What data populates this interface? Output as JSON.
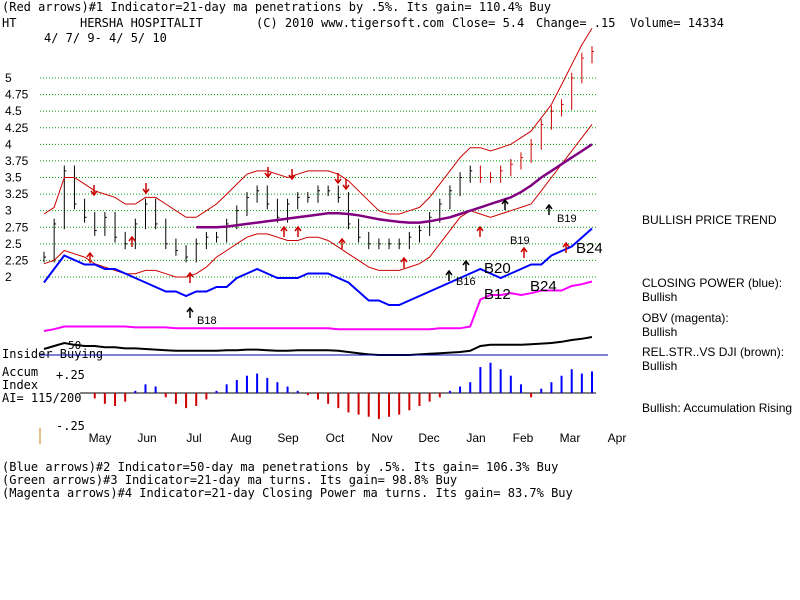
{
  "header": {
    "line1": "(Red arrows)#1 Indicator=21-day ma penetrations by .5%. Its gain= 110.4% Buy",
    "ticker": "HT",
    "company": "HERSHA HOSPITALIT",
    "copyright": "(C) 2010 www.tigersoft.com",
    "close": "Close=  5.4",
    "change": "Change= .15",
    "volume": "Volume= 14334",
    "dates": "4/ 7/ 9- 4/ 5/ 10"
  },
  "footer": {
    "line1": "(Blue arrows)#2 Indicator=50-day ma penetrations by .5%. Its gain= 106.3% Buy",
    "line2": "(Green arrows)#3 Indicator=21-day ma turns. Its gain= 98.8% Buy",
    "line3": "(Magenta arrows)#4 Indicator=21-day Closing Power ma turns. Its gain= 83.7% Buy"
  },
  "left_labels": {
    "insider": "Insider Buying",
    "accum1": "Accum",
    "accum2": "Index",
    "ai": "AI= 115/200",
    "plus25": "+.25",
    "minus25": "-.25",
    "fifty": "50"
  },
  "right_panel": {
    "trend": "BULLISH PRICE TREND",
    "cp_title": "CLOSING POWER (blue):",
    "cp_value": "Bullish",
    "obv_title": "OBV (magenta):",
    "obv_value": "Bullish",
    "rs_title": "REL.STR..VS DJI (brown):",
    "rs_value": "Bullish",
    "accum": "Bullish: Accumulation Rising"
  },
  "signal_labels": {
    "b18": "B18",
    "b19a": "B19",
    "b19b": "B19",
    "b16": "B16",
    "b20": "B20",
    "b12": "B12",
    "b24a": "B24",
    "b24b": "B24"
  },
  "colors": {
    "price": "#000000",
    "bands": "#cc0000",
    "ma50": "#800080",
    "closing_power": "#0000ff",
    "obv": "#ff00ff",
    "rel_str": "#000000",
    "accum_pos": "#0000ff",
    "accum_neg": "#cc0000",
    "grid": "#009900"
  },
  "chart_data": {
    "type": "line",
    "x_ticks": [
      "May",
      "Jun",
      "Jul",
      "Aug",
      "Sep",
      "Oct",
      "Nov",
      "Dec",
      "Jan",
      "Feb",
      "Mar",
      "Apr"
    ],
    "y_ticks": [
      2,
      2.25,
      2.5,
      2.75,
      3,
      3.25,
      3.5,
      3.75,
      4,
      4.25,
      4.5,
      4.75,
      5
    ],
    "ylim": [
      1.95,
      5.75
    ],
    "grid": true,
    "series": [
      {
        "key": "close",
        "values": [
          2.3,
          2.8,
          3.6,
          3.1,
          2.9,
          2.7,
          2.9,
          2.6,
          2.5,
          2.8,
          3.1,
          2.8,
          2.5,
          2.4,
          2.3,
          2.5,
          2.6,
          2.6,
          2.8,
          3.0,
          3.2,
          3.3,
          3.1,
          2.9,
          3.1,
          3.2,
          3.2,
          3.3,
          3.3,
          3.2,
          2.8,
          2.6,
          2.5,
          2.5,
          2.5,
          2.5,
          2.6,
          2.7,
          2.9,
          3.1,
          3.3,
          3.5,
          3.6,
          3.5,
          3.5,
          3.6,
          3.7,
          3.8,
          4.0,
          4.3,
          4.5,
          4.6,
          5.0,
          5.3,
          5.4
        ]
      },
      {
        "key": "upper_band",
        "values": [
          2.95,
          3.05,
          3.5,
          3.5,
          3.4,
          3.3,
          3.25,
          3.2,
          3.1,
          3.1,
          3.2,
          3.2,
          3.1,
          3.0,
          2.9,
          2.9,
          3.0,
          3.1,
          3.25,
          3.4,
          3.55,
          3.6,
          3.6,
          3.55,
          3.5,
          3.55,
          3.6,
          3.6,
          3.6,
          3.55,
          3.45,
          3.3,
          3.15,
          3.0,
          2.95,
          2.95,
          3.0,
          3.05,
          3.2,
          3.4,
          3.6,
          3.8,
          3.95,
          3.95,
          3.9,
          3.95,
          4.0,
          4.1,
          4.2,
          4.4,
          4.6,
          4.9,
          5.2,
          5.5,
          5.75
        ]
      },
      {
        "key": "lower_band",
        "values": [
          2.2,
          2.25,
          2.4,
          2.35,
          2.3,
          2.2,
          2.15,
          2.1,
          2.05,
          2.05,
          2.1,
          2.1,
          2.05,
          2.0,
          2.0,
          2.05,
          2.15,
          2.3,
          2.4,
          2.5,
          2.6,
          2.65,
          2.65,
          2.6,
          2.55,
          2.55,
          2.6,
          2.6,
          2.55,
          2.45,
          2.35,
          2.25,
          2.15,
          2.1,
          2.1,
          2.1,
          2.15,
          2.2,
          2.3,
          2.5,
          2.7,
          2.9,
          3.0,
          2.95,
          2.9,
          2.95,
          3.0,
          3.05,
          3.1,
          3.3,
          3.5,
          3.7,
          3.9,
          4.1,
          4.3
        ]
      },
      {
        "key": "ma50",
        "values": [
          null,
          null,
          null,
          null,
          null,
          null,
          null,
          null,
          null,
          null,
          null,
          null,
          null,
          null,
          null,
          2.75,
          2.75,
          2.75,
          2.76,
          2.78,
          2.8,
          2.82,
          2.84,
          2.86,
          2.88,
          2.9,
          2.92,
          2.94,
          2.96,
          2.96,
          2.95,
          2.93,
          2.9,
          2.87,
          2.85,
          2.83,
          2.82,
          2.82,
          2.84,
          2.87,
          2.9,
          2.95,
          3.0,
          3.05,
          3.1,
          3.15,
          3.2,
          3.28,
          3.38,
          3.5,
          3.6,
          3.7,
          3.8,
          3.9,
          4.0
        ]
      }
    ],
    "indicator_series": [
      {
        "key": "closing_power",
        "values": [
          0.25,
          0.4,
          0.55,
          0.5,
          0.45,
          0.45,
          0.4,
          0.4,
          0.35,
          0.3,
          0.25,
          0.2,
          0.15,
          0.15,
          0.1,
          0.15,
          0.15,
          0.2,
          0.2,
          0.3,
          0.35,
          0.4,
          0.35,
          0.3,
          0.3,
          0.3,
          0.35,
          0.35,
          0.35,
          0.3,
          0.25,
          0.15,
          0.05,
          0.05,
          0.0,
          0.0,
          0.05,
          0.1,
          0.15,
          0.2,
          0.25,
          0.3,
          0.35,
          0.4,
          0.35,
          0.3,
          0.35,
          0.4,
          0.45,
          0.45,
          0.55,
          0.6,
          0.65,
          0.75,
          0.85
        ]
      },
      {
        "key": "obv",
        "values": [
          0.1,
          0.12,
          0.15,
          0.15,
          0.15,
          0.15,
          0.15,
          0.15,
          0.15,
          0.14,
          0.14,
          0.14,
          0.14,
          0.13,
          0.13,
          0.13,
          0.13,
          0.13,
          0.13,
          0.13,
          0.13,
          0.13,
          0.13,
          0.13,
          0.13,
          0.13,
          0.13,
          0.13,
          0.13,
          0.12,
          0.12,
          0.12,
          0.12,
          0.12,
          0.12,
          0.12,
          0.12,
          0.12,
          0.12,
          0.13,
          0.13,
          0.13,
          0.15,
          0.45,
          0.5,
          0.5,
          0.52,
          0.5,
          0.52,
          0.55,
          0.55,
          0.55,
          0.6,
          0.62,
          0.65
        ]
      },
      {
        "key": "rel_str",
        "values": [
          0.65,
          0.7,
          0.75,
          0.72,
          0.7,
          0.7,
          0.68,
          0.68,
          0.66,
          0.66,
          0.65,
          0.64,
          0.63,
          0.62,
          0.62,
          0.62,
          0.62,
          0.62,
          0.63,
          0.63,
          0.64,
          0.64,
          0.63,
          0.62,
          0.62,
          0.63,
          0.63,
          0.63,
          0.63,
          0.62,
          0.6,
          0.58,
          0.56,
          0.55,
          0.55,
          0.55,
          0.55,
          0.56,
          0.57,
          0.58,
          0.59,
          0.6,
          0.62,
          0.7,
          0.72,
          0.72,
          0.72,
          0.72,
          0.73,
          0.74,
          0.75,
          0.77,
          0.8,
          0.82,
          0.85
        ]
      }
    ],
    "accum_index": [
      0.1,
      0.15,
      0.18,
      0.12,
      0.05,
      -0.05,
      -0.1,
      -0.12,
      -0.08,
      0.02,
      0.08,
      0.06,
      -0.04,
      -0.1,
      -0.14,
      -0.12,
      -0.06,
      0.02,
      0.08,
      0.12,
      0.16,
      0.18,
      0.14,
      0.1,
      0.06,
      0.02,
      -0.02,
      -0.06,
      -0.1,
      -0.14,
      -0.18,
      -0.2,
      -0.22,
      -0.24,
      -0.22,
      -0.2,
      -0.16,
      -0.12,
      -0.08,
      -0.04,
      0.02,
      0.06,
      0.1,
      0.24,
      0.28,
      0.22,
      0.16,
      0.08,
      -0.04,
      0.04,
      0.1,
      0.16,
      0.22,
      0.18,
      0.2
    ],
    "accum_ylim": [
      -0.3,
      0.35
    ]
  }
}
